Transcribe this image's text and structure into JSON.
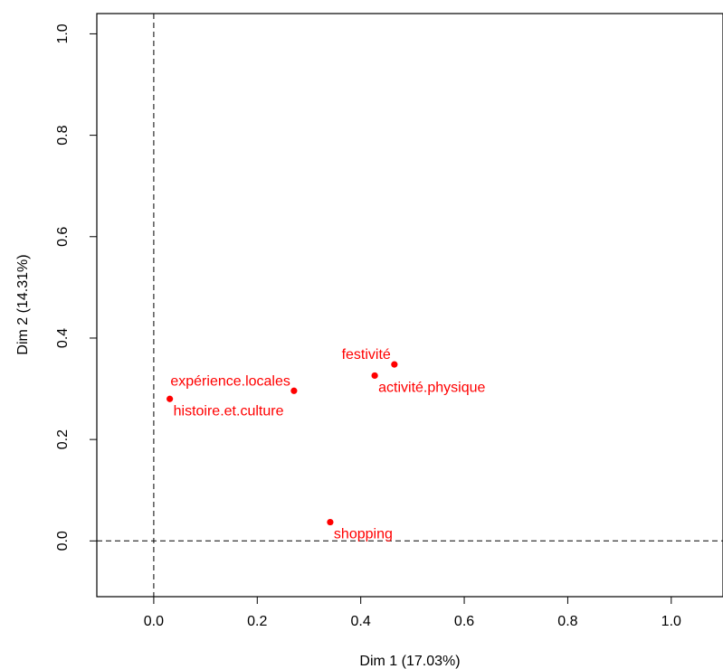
{
  "chart_data": {
    "type": "scatter",
    "xlabel": "Dim 1 (17.03%)",
    "ylabel": "Dim 2 (14.31%)",
    "xlim": [
      -0.11,
      1.1
    ],
    "ylim": [
      -0.11,
      1.04
    ],
    "xticks": [
      "0.0",
      "0.2",
      "0.4",
      "0.6",
      "0.8",
      "1.0"
    ],
    "yticks": [
      "0.0",
      "0.2",
      "0.4",
      "0.6",
      "0.8",
      "1.0"
    ],
    "reference_lines": {
      "x": 0,
      "y": 0,
      "style": "dashed"
    },
    "point_color": "#ff0000",
    "points": [
      {
        "label": "festivité",
        "x": 0.465,
        "y": 0.348,
        "label_side": "above-left"
      },
      {
        "label": "expérience.locales",
        "x": 0.271,
        "y": 0.296,
        "label_side": "above-left"
      },
      {
        "label": "activité.physique",
        "x": 0.427,
        "y": 0.326,
        "label_side": "below-right"
      },
      {
        "label": "histoire.et.culture",
        "x": 0.031,
        "y": 0.28,
        "label_side": "below-right"
      },
      {
        "label": "shopping",
        "x": 0.341,
        "y": 0.037,
        "label_side": "below-right"
      }
    ]
  }
}
